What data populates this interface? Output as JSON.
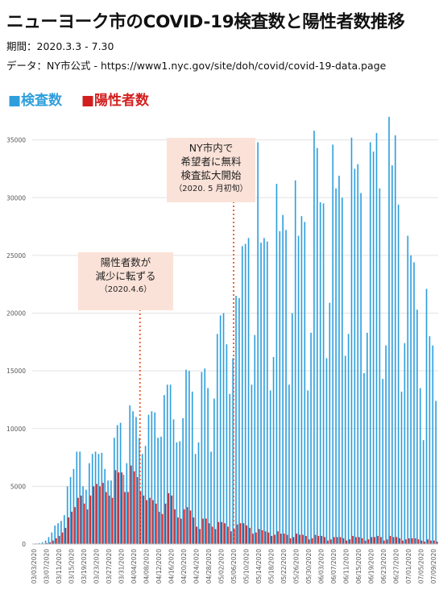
{
  "title": "ニューヨーク市のCOVID-19検査数と陽性者数推移",
  "period": "期間：2020.3.3 - 7.30",
  "source": "データ：NY市公式 - https://www1.nyc.gov/site/doh/covid/covid-19-data.page",
  "legend": {
    "tests": "■検査数",
    "positives": "■陽性者数"
  },
  "annotations": {
    "a1": {
      "line1": "陽性者数が",
      "line2": "減少に転ずる",
      "date": "（2020.4.6）"
    },
    "a2": {
      "line1": "NY市内で",
      "line2": "希望者に無料",
      "line3": "検査拡大開始",
      "date": "（2020. 5 月初旬）"
    }
  },
  "colors": {
    "tests": "#2e9fdc",
    "positives": "#d21e1e",
    "annotation_bg": "#fbe2d8",
    "annotation_line": "#e8643c"
  },
  "chart_data": {
    "type": "bar",
    "x_start": "2020-03-03",
    "x_end": "2020-07-30",
    "ylim": [
      0,
      37000
    ],
    "yticks": [
      0,
      5000,
      10000,
      15000,
      20000,
      25000,
      30000,
      35000
    ],
    "grid": true,
    "xtick_labels": [
      "03/03/2020",
      "03/07/2020",
      "03/11/2020",
      "03/15/2020",
      "03/19/2020",
      "03/23/2020",
      "03/27/2020",
      "03/31/2020",
      "04/04/2020",
      "04/08/2020",
      "04/12/2020",
      "04/16/2020",
      "04/20/2020",
      "04/24/2020",
      "04/28/2020",
      "05/02/2020",
      "05/06/2020",
      "05/10/2020",
      "05/14/2020",
      "05/18/2020",
      "05/22/2020",
      "05/26/2020",
      "05/30/2020",
      "06/03/2020",
      "06/07/2020",
      "06/11/2020",
      "06/15/2020",
      "06/19/2020",
      "06/23/2020",
      "06/27/2020",
      "07/01/2020",
      "07/05/2020",
      "07/09/2020",
      "07/13/2020",
      "07/17/2020",
      "07/21/2020",
      "07/25/2020",
      "07/29/2020"
    ],
    "annotation_dates": [
      "2020-04-06",
      "2020-05-06"
    ],
    "series": [
      {
        "name": "検査数",
        "values": [
          30,
          50,
          80,
          150,
          300,
          600,
          1000,
          1600,
          1800,
          2000,
          2500,
          5000,
          5800,
          6500,
          8000,
          8000,
          5000,
          4700,
          7000,
          7800,
          8000,
          7800,
          7900,
          6500,
          5500,
          5500,
          9200,
          10300,
          10500,
          6000,
          7000,
          12000,
          11500,
          11000,
          9200,
          7800,
          8500,
          11200,
          11500,
          11400,
          9200,
          9300,
          12900,
          13800,
          13800,
          10800,
          8800,
          8900,
          10900,
          15100,
          15000,
          13200,
          7800,
          8800,
          14900,
          15200,
          13500,
          8000,
          12600,
          18200,
          19800,
          20000,
          17300,
          13000,
          16100,
          21500,
          21300,
          25800,
          26000,
          26500,
          13800,
          18100,
          34800,
          26100,
          26500,
          26200,
          13300,
          16200,
          31200,
          27100,
          28500,
          27200,
          13800,
          20000,
          31500,
          26700,
          28400,
          27900,
          13300,
          18300,
          35800,
          34300,
          29600,
          29500,
          16100,
          20900,
          34600,
          30800,
          31900,
          30000,
          16300,
          18200,
          35200,
          32500,
          32900,
          30400,
          14800,
          18300,
          34800,
          34000,
          35600,
          30800,
          14300,
          17200,
          37000,
          32800,
          35400,
          29400,
          13200,
          17400,
          26700,
          25000,
          24400,
          20300,
          13500,
          9000,
          22100,
          18000,
          17200,
          12400
        ]
      },
      {
        "name": "陽性者数",
        "values": [
          3,
          5,
          10,
          20,
          80,
          150,
          300,
          500,
          700,
          1000,
          1400,
          2300,
          2800,
          3200,
          4000,
          4200,
          3500,
          3000,
          4200,
          5000,
          5200,
          5000,
          5300,
          4500,
          4200,
          4000,
          6400,
          6200,
          6200,
          4500,
          4500,
          6800,
          6300,
          5800,
          4600,
          4200,
          3800,
          4000,
          3800,
          3500,
          2800,
          2600,
          3500,
          4400,
          4200,
          3000,
          2300,
          2200,
          3000,
          3200,
          2900,
          2300,
          1500,
          1300,
          2200,
          2200,
          1800,
          1500,
          1300,
          1900,
          1900,
          1800,
          1500,
          1100,
          1300,
          1700,
          1800,
          1800,
          1600,
          1400,
          900,
          1000,
          1300,
          1200,
          1100,
          1000,
          700,
          800,
          1100,
          900,
          900,
          800,
          500,
          600,
          900,
          800,
          800,
          700,
          400,
          500,
          800,
          700,
          700,
          600,
          300,
          400,
          600,
          600,
          600,
          500,
          300,
          400,
          700,
          600,
          600,
          500,
          300,
          400,
          600,
          600,
          700,
          600,
          300,
          400,
          700,
          600,
          600,
          500,
          300,
          400,
          500,
          500,
          500,
          400,
          300,
          200,
          400,
          300,
          300,
          200
        ]
      }
    ]
  }
}
